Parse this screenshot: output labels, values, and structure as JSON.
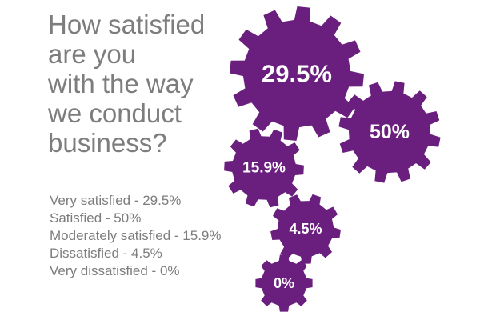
{
  "question_lines": [
    "How satisfied",
    "are you",
    "with the way",
    "we conduct",
    "business?"
  ],
  "colors": {
    "gear": "#6a1f7e",
    "text": "#7d7d7d",
    "label": "#ffffff"
  },
  "chart_data": {
    "type": "pie",
    "title": "How satisfied are you with the way we conduct business?",
    "categories": [
      "Very satisfied",
      "Satisfied",
      "Moderately satisfied",
      "Dissatisfied",
      "Very dissatisfied"
    ],
    "values": [
      29.5,
      50,
      15.9,
      4.5,
      0
    ],
    "value_labels": [
      "29.5%",
      "50%",
      "15.9%",
      "4.5%",
      "0%"
    ],
    "legend": [
      "Very satisfied - 29.5%",
      "Satisfied - 50%",
      "Moderately satisfied - 15.9%",
      "Dissatisfied - 4.5%",
      "Very dissatisfied - 0%"
    ]
  }
}
